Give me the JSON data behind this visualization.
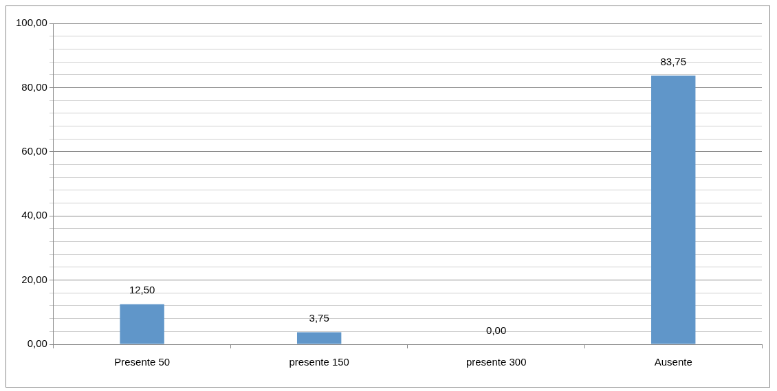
{
  "chart_data": {
    "type": "bar",
    "categories": [
      "Presente 50",
      "presente 150",
      "presente 300",
      "Ausente"
    ],
    "values": [
      12.5,
      3.75,
      0,
      83.75
    ],
    "color": "#6096c9",
    "value_labels": [
      "12,50",
      "3,75",
      "0,00",
      "83,75"
    ],
    "ylim": [
      0,
      100
    ],
    "yticks": [
      {
        "value": 0,
        "label": "0,00"
      },
      {
        "value": 4,
        "label": null
      },
      {
        "value": 8,
        "label": null
      },
      {
        "value": 12,
        "label": null
      },
      {
        "value": 16,
        "label": null
      },
      {
        "value": 20,
        "label": "20,00"
      },
      {
        "value": 24,
        "label": null
      },
      {
        "value": 28,
        "label": null
      },
      {
        "value": 32,
        "label": null
      },
      {
        "value": 36,
        "label": null
      },
      {
        "value": 40,
        "label": "40,00"
      },
      {
        "value": 44,
        "label": null
      },
      {
        "value": 48,
        "label": null
      },
      {
        "value": 52,
        "label": null
      },
      {
        "value": 56,
        "label": null
      },
      {
        "value": 60,
        "label": "60,00"
      },
      {
        "value": 64,
        "label": null
      },
      {
        "value": 68,
        "label": null
      },
      {
        "value": 72,
        "label": null
      },
      {
        "value": 76,
        "label": null
      },
      {
        "value": 80,
        "label": "80,00"
      },
      {
        "value": 84,
        "label": null
      },
      {
        "value": 88,
        "label": null
      },
      {
        "value": 92,
        "label": null
      },
      {
        "value": 96,
        "label": null
      },
      {
        "value": 100,
        "label": "100,00"
      }
    ],
    "grid": true,
    "legend": false
  }
}
